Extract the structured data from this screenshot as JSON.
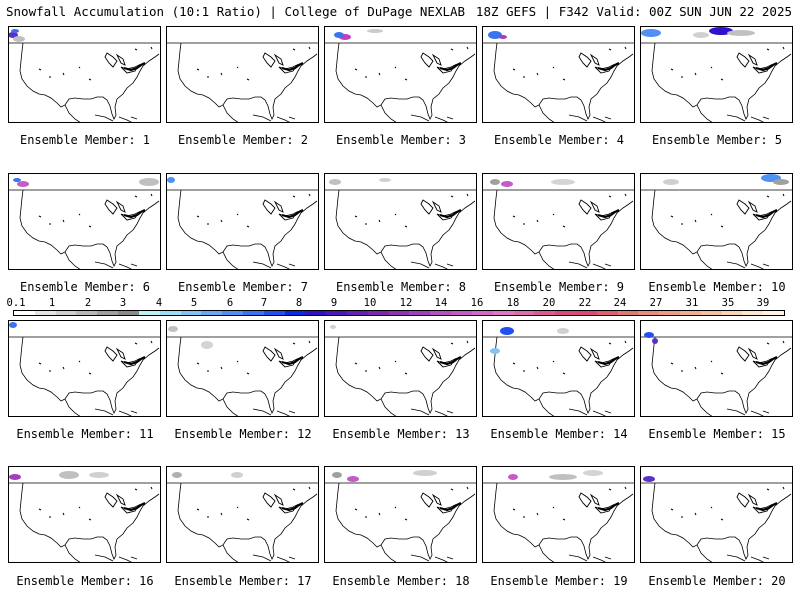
{
  "header": {
    "title_left": "Snowfall Accumulation (10:1 Ratio) | College of DuPage NEXLAB",
    "title_right": "18Z GEFS | F342 Valid: 00Z SUN JUN 22 2025"
  },
  "legend": {
    "labels": [
      "0.1",
      "1",
      "2",
      "3",
      "4",
      "5",
      "6",
      "7",
      "8",
      "9",
      "10",
      "12",
      "14",
      "16",
      "18",
      "20",
      "22",
      "24",
      "27",
      "31",
      "35",
      "39"
    ],
    "colors": [
      "#ffffff",
      "#e4e4e4",
      "#cfcfcf",
      "#b9b9b9",
      "#a0a0a0",
      "#8a8a8a",
      "#bff0f4",
      "#9be0f0",
      "#7fc4f4",
      "#68a8f4",
      "#5090f0",
      "#3a74f0",
      "#2050f0",
      "#0a28e8",
      "#3010c8",
      "#4a18b8",
      "#6420b0",
      "#7a28b0",
      "#8c34b4",
      "#a040bc",
      "#b450c4",
      "#c45cc8",
      "#d468c8",
      "#e078c4",
      "#e06cac",
      "#dc5c94",
      "#d84c80",
      "#d84878",
      "#dc6070",
      "#e07874",
      "#e88c80",
      "#ec9c88",
      "#f0ae94",
      "#f4c0a4",
      "#f8d4b8",
      "#fce6cc",
      "#fff4e4"
    ]
  },
  "members": [
    {
      "caption": "Ensemble Member: 1"
    },
    {
      "caption": "Ensemble Member: 2"
    },
    {
      "caption": "Ensemble Member: 3"
    },
    {
      "caption": "Ensemble Member: 4"
    },
    {
      "caption": "Ensemble Member: 5"
    },
    {
      "caption": "Ensemble Member: 6"
    },
    {
      "caption": "Ensemble Member: 7"
    },
    {
      "caption": "Ensemble Member: 8"
    },
    {
      "caption": "Ensemble Member: 9"
    },
    {
      "caption": "Ensemble Member: 10"
    },
    {
      "caption": "Ensemble Member: 11"
    },
    {
      "caption": "Ensemble Member: 12"
    },
    {
      "caption": "Ensemble Member: 13"
    },
    {
      "caption": "Ensemble Member: 14"
    },
    {
      "caption": "Ensemble Member: 15"
    },
    {
      "caption": "Ensemble Member: 16"
    },
    {
      "caption": "Ensemble Member: 17"
    },
    {
      "caption": "Ensemble Member: 18"
    },
    {
      "caption": "Ensemble Member: 19"
    },
    {
      "caption": "Ensemble Member: 20"
    }
  ]
}
